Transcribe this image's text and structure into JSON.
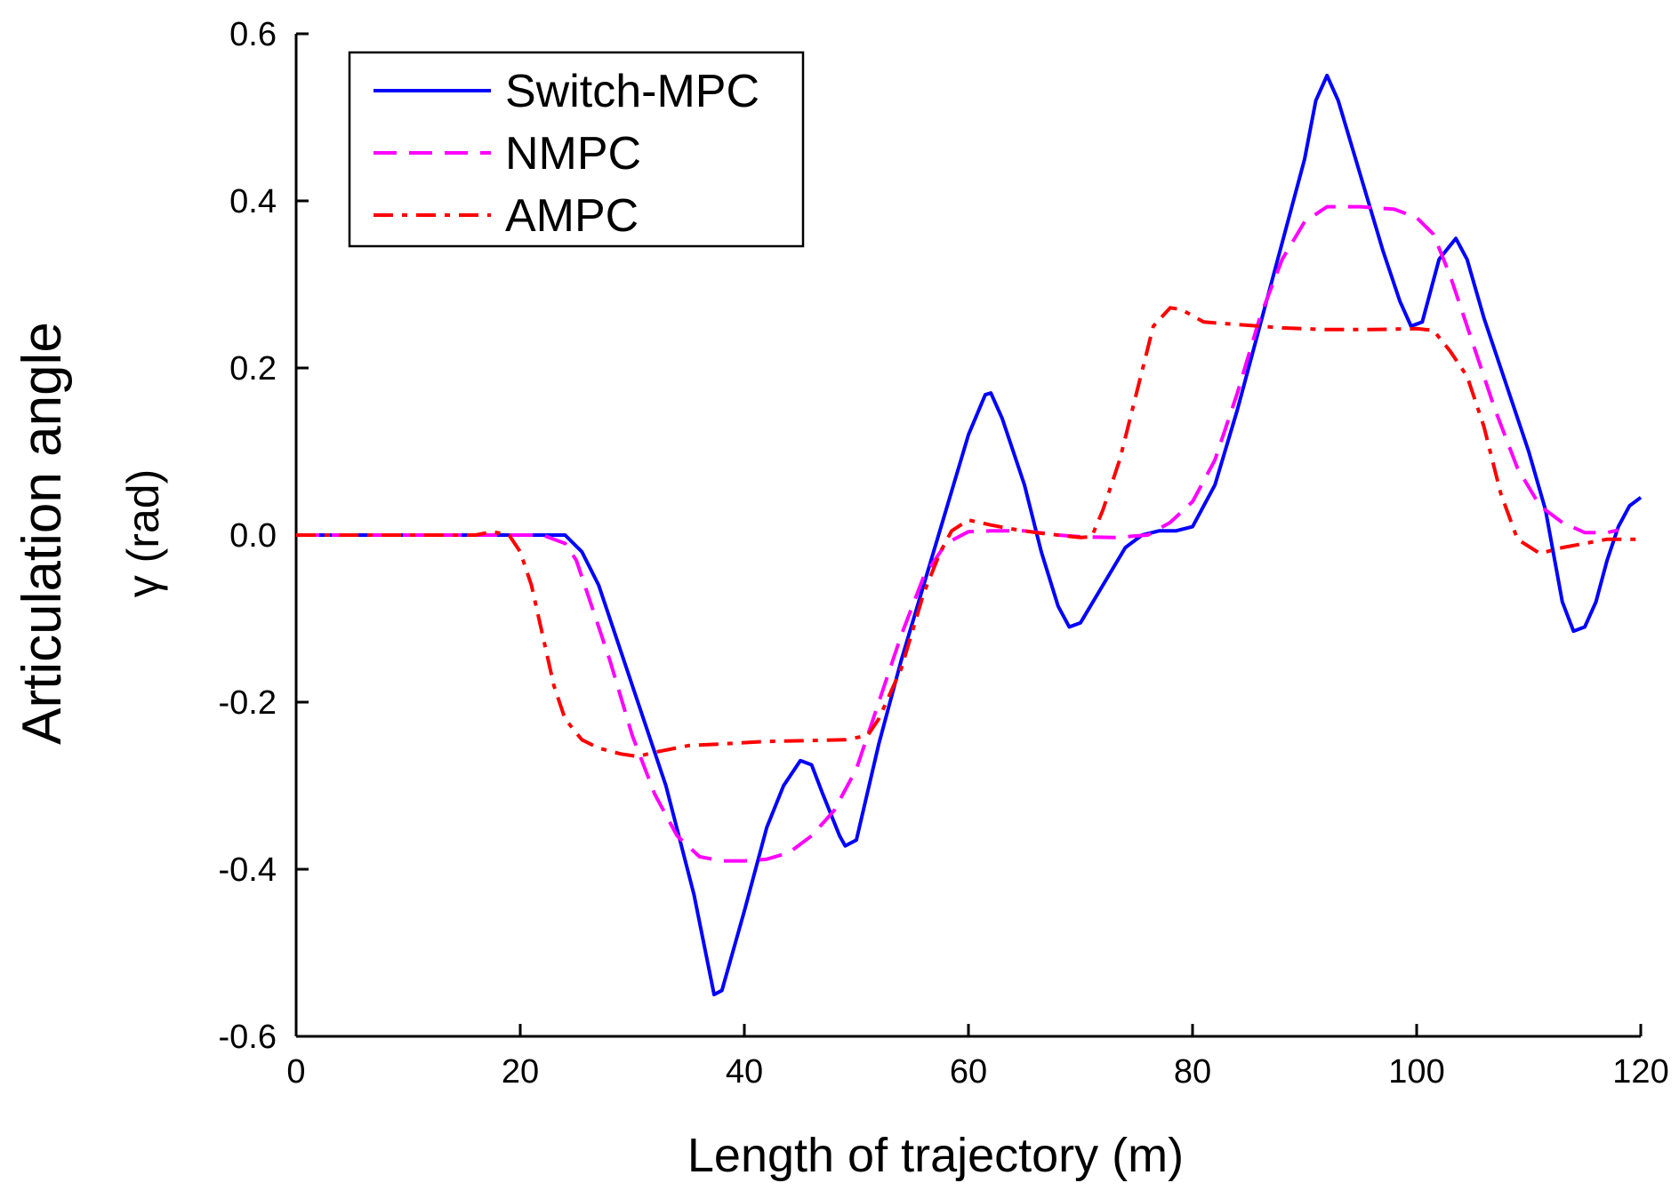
{
  "chart_data": {
    "type": "line",
    "title": "",
    "xlabel": "Length of trajectory (m)",
    "ylabel_line1": "Articulation angle",
    "ylabel_line2": "γ (rad)",
    "xlim": [
      0,
      120
    ],
    "ylim": [
      -0.6,
      0.6
    ],
    "grid": false,
    "legend_position": "top-left",
    "x_ticks": [
      0,
      20,
      40,
      60,
      80,
      100,
      120
    ],
    "x_tick_labels": [
      "0",
      "20",
      "40",
      "60",
      "80",
      "100",
      "120"
    ],
    "y_ticks": [
      -0.6,
      -0.4,
      -0.2,
      0.0,
      0.2,
      0.4,
      0.6
    ],
    "y_tick_labels": [
      "-0.6",
      "-0.4",
      "-0.2",
      "0.0",
      "0.2",
      "0.4",
      "0.6"
    ],
    "series": [
      {
        "name": "Switch-MPC",
        "color": "#0000ff",
        "dash": "solid",
        "points": [
          [
            0,
            0
          ],
          [
            24,
            0
          ],
          [
            25.5,
            -0.02
          ],
          [
            27,
            -0.06
          ],
          [
            30,
            -0.18
          ],
          [
            33,
            -0.3
          ],
          [
            35.5,
            -0.43
          ],
          [
            37.3,
            -0.55
          ],
          [
            38,
            -0.545
          ],
          [
            40,
            -0.45
          ],
          [
            42,
            -0.35
          ],
          [
            43.5,
            -0.3
          ],
          [
            45,
            -0.27
          ],
          [
            46,
            -0.275
          ],
          [
            47,
            -0.31
          ],
          [
            48.5,
            -0.36
          ],
          [
            49,
            -0.372
          ],
          [
            50,
            -0.365
          ],
          [
            52,
            -0.25
          ],
          [
            54,
            -0.15
          ],
          [
            56,
            -0.06
          ],
          [
            58,
            0.03
          ],
          [
            60,
            0.12
          ],
          [
            61.5,
            0.168
          ],
          [
            62,
            0.17
          ],
          [
            63,
            0.14
          ],
          [
            65,
            0.06
          ],
          [
            66.5,
            -0.02
          ],
          [
            68,
            -0.085
          ],
          [
            69,
            -0.11
          ],
          [
            70,
            -0.105
          ],
          [
            72,
            -0.06
          ],
          [
            74,
            -0.015
          ],
          [
            75.5,
            0
          ],
          [
            77,
            0.005
          ],
          [
            78.5,
            0.005
          ],
          [
            80,
            0.01
          ],
          [
            82,
            0.06
          ],
          [
            84,
            0.15
          ],
          [
            86,
            0.25
          ],
          [
            88,
            0.35
          ],
          [
            90,
            0.45
          ],
          [
            91,
            0.52
          ],
          [
            92,
            0.55
          ],
          [
            93,
            0.52
          ],
          [
            95,
            0.43
          ],
          [
            97,
            0.34
          ],
          [
            98.5,
            0.28
          ],
          [
            99.5,
            0.25
          ],
          [
            100.5,
            0.255
          ],
          [
            102,
            0.33
          ],
          [
            103.5,
            0.355
          ],
          [
            104.5,
            0.33
          ],
          [
            106,
            0.26
          ],
          [
            108,
            0.18
          ],
          [
            110,
            0.1
          ],
          [
            111.5,
            0.03
          ],
          [
            113,
            -0.08
          ],
          [
            114,
            -0.115
          ],
          [
            115,
            -0.11
          ],
          [
            116,
            -0.08
          ],
          [
            117,
            -0.03
          ],
          [
            118,
            0.01
          ],
          [
            119,
            0.035
          ],
          [
            120,
            0.045
          ]
        ]
      },
      {
        "name": "NMPC",
        "color": "#ff00ff",
        "dash": "dashed",
        "points": [
          [
            0,
            0
          ],
          [
            22,
            0
          ],
          [
            23,
            -0.005
          ],
          [
            24,
            -0.01
          ],
          [
            25,
            -0.03
          ],
          [
            26,
            -0.07
          ],
          [
            28,
            -0.15
          ],
          [
            30,
            -0.24
          ],
          [
            32,
            -0.31
          ],
          [
            34,
            -0.36
          ],
          [
            36,
            -0.385
          ],
          [
            38,
            -0.39
          ],
          [
            40,
            -0.39
          ],
          [
            42,
            -0.388
          ],
          [
            44,
            -0.38
          ],
          [
            46,
            -0.36
          ],
          [
            48,
            -0.33
          ],
          [
            50,
            -0.28
          ],
          [
            52,
            -0.2
          ],
          [
            54,
            -0.12
          ],
          [
            56,
            -0.05
          ],
          [
            58,
            -0.01
          ],
          [
            60,
            0.004
          ],
          [
            62,
            0.005
          ],
          [
            65,
            0.005
          ],
          [
            68,
            0
          ],
          [
            70,
            -0.002
          ],
          [
            73,
            -0.003
          ],
          [
            76,
            0
          ],
          [
            78,
            0.015
          ],
          [
            80,
            0.04
          ],
          [
            82,
            0.09
          ],
          [
            84,
            0.17
          ],
          [
            86,
            0.26
          ],
          [
            88,
            0.33
          ],
          [
            90,
            0.375
          ],
          [
            92,
            0.393
          ],
          [
            95,
            0.393
          ],
          [
            98,
            0.39
          ],
          [
            100,
            0.38
          ],
          [
            101.5,
            0.36
          ],
          [
            103,
            0.31
          ],
          [
            105,
            0.23
          ],
          [
            107,
            0.15
          ],
          [
            109,
            0.08
          ],
          [
            111,
            0.035
          ],
          [
            113,
            0.015
          ],
          [
            115,
            0.003
          ],
          [
            117,
            0.003
          ],
          [
            118,
            0.006
          ]
        ]
      },
      {
        "name": "AMPC",
        "color": "#ff0000",
        "dash": "dashdot",
        "points": [
          [
            0,
            0
          ],
          [
            16,
            0
          ],
          [
            17.5,
            0.004
          ],
          [
            19,
            0
          ],
          [
            20,
            -0.02
          ],
          [
            21,
            -0.06
          ],
          [
            22,
            -0.12
          ],
          [
            23,
            -0.18
          ],
          [
            24,
            -0.22
          ],
          [
            25.5,
            -0.245
          ],
          [
            27,
            -0.255
          ],
          [
            29,
            -0.262
          ],
          [
            30.5,
            -0.265
          ],
          [
            32,
            -0.26
          ],
          [
            35,
            -0.252
          ],
          [
            38,
            -0.25
          ],
          [
            42,
            -0.247
          ],
          [
            46,
            -0.246
          ],
          [
            49,
            -0.245
          ],
          [
            51,
            -0.24
          ],
          [
            52,
            -0.22
          ],
          [
            54,
            -0.16
          ],
          [
            56,
            -0.07
          ],
          [
            57.5,
            -0.02
          ],
          [
            58.5,
            0.005
          ],
          [
            60,
            0.018
          ],
          [
            62,
            0.012
          ],
          [
            64,
            0.007
          ],
          [
            66,
            0.003
          ],
          [
            68,
            0
          ],
          [
            70,
            -0.003
          ],
          [
            71,
            -0.002
          ],
          [
            72,
            0.03
          ],
          [
            73.5,
            0.09
          ],
          [
            75,
            0.17
          ],
          [
            76.5,
            0.25
          ],
          [
            78,
            0.272
          ],
          [
            79,
            0.27
          ],
          [
            81,
            0.255
          ],
          [
            84,
            0.252
          ],
          [
            88,
            0.248
          ],
          [
            92,
            0.246
          ],
          [
            96,
            0.246
          ],
          [
            100,
            0.247
          ],
          [
            101.5,
            0.245
          ],
          [
            103,
            0.22
          ],
          [
            104.5,
            0.19
          ],
          [
            106,
            0.13
          ],
          [
            107.5,
            0.05
          ],
          [
            109,
            -0.005
          ],
          [
            111,
            -0.022
          ],
          [
            113,
            -0.015
          ],
          [
            115,
            -0.01
          ],
          [
            117,
            -0.005
          ],
          [
            120,
            -0.005
          ]
        ]
      }
    ]
  }
}
